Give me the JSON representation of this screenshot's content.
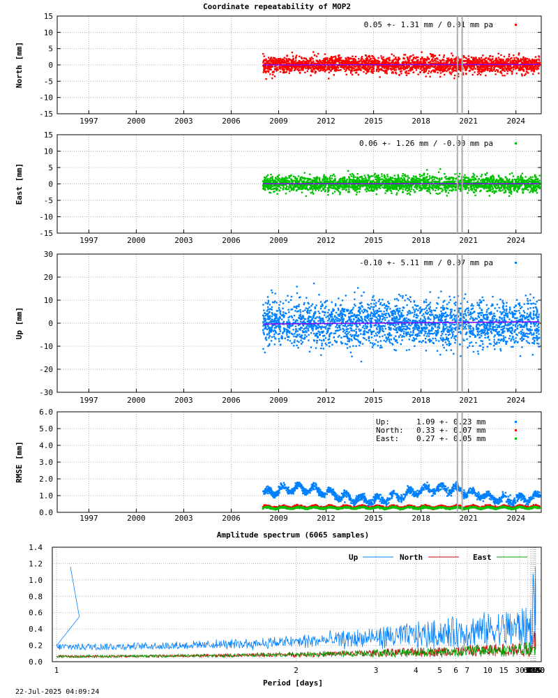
{
  "footer_timestamp": "22-Jul-2025 04:09:24",
  "chart_data": [
    {
      "type": "scatter",
      "title": "Coordinate repeatability of MOP2",
      "ylabel": "North [mm]",
      "xlim": [
        1995.0,
        2025.6
      ],
      "ylim": [
        -15,
        15
      ],
      "yticks": [
        15,
        10,
        5,
        0,
        -5,
        -10,
        -15
      ],
      "xticks": [
        1997,
        2000,
        2003,
        2006,
        2009,
        2012,
        2015,
        2018,
        2021,
        2024
      ],
      "grid": true,
      "series_color": "#ff0000",
      "trend_color": "#8000ff",
      "legend_text": "0.05 +- 1.31 mm /  0.01 mm pa",
      "data_start": 2008.0,
      "data_end": 2025.5,
      "spread_mm": 1.31,
      "mean_mm": 0.05,
      "rate_mm_pa": 0.01,
      "vertical_markers": [
        2020.3,
        2020.6
      ]
    },
    {
      "type": "scatter",
      "ylabel": "East [mm]",
      "xlim": [
        1995.0,
        2025.6
      ],
      "ylim": [
        -15,
        15
      ],
      "yticks": [
        15,
        10,
        5,
        0,
        -5,
        -10,
        -15
      ],
      "xticks": [
        1997,
        2000,
        2003,
        2006,
        2009,
        2012,
        2015,
        2018,
        2021,
        2024
      ],
      "grid": true,
      "series_color": "#00c000",
      "trend_color": "#8000ff",
      "legend_text": "0.06 +- 1.26 mm / -0.00 mm pa",
      "data_start": 2008.0,
      "data_end": 2025.5,
      "spread_mm": 1.26,
      "mean_mm": 0.06,
      "rate_mm_pa": -0.0,
      "vertical_markers": [
        2020.3,
        2020.6
      ]
    },
    {
      "type": "scatter",
      "ylabel": "Up [mm]",
      "xlim": [
        1995.0,
        2025.6
      ],
      "ylim": [
        -30,
        30
      ],
      "yticks": [
        30,
        20,
        10,
        0,
        -10,
        -20,
        -30
      ],
      "xticks": [
        1997,
        2000,
        2003,
        2006,
        2009,
        2012,
        2015,
        2018,
        2021,
        2024
      ],
      "grid": true,
      "series_color": "#0080ff",
      "trend_color": "#8000ff",
      "legend_text": "-0.10 +- 5.11 mm /  0.07 mm pa",
      "data_start": 2008.0,
      "data_end": 2025.5,
      "spread_mm": 5.11,
      "mean_mm": -0.1,
      "rate_mm_pa": 0.07,
      "vertical_markers": [
        2020.3,
        2020.6
      ]
    },
    {
      "type": "scatter",
      "ylabel": "RMSE [mm]",
      "xlim": [
        1995.0,
        2025.6
      ],
      "ylim": [
        0,
        6
      ],
      "yticks": [
        "6.0",
        "5.0",
        "4.0",
        "3.0",
        "2.0",
        "1.0",
        "0.0"
      ],
      "xticks": [
        1997,
        2000,
        2003,
        2006,
        2009,
        2012,
        2015,
        2018,
        2021,
        2024
      ],
      "grid": true,
      "vertical_markers": [
        2020.3,
        2020.6
      ],
      "legend_position": "top-right",
      "series": [
        {
          "name": "Up:",
          "stats": "1.09 +- 0.23 mm",
          "mean": 1.09,
          "sd": 0.23,
          "color": "#0080ff"
        },
        {
          "name": "North:",
          "stats": "0.33 +- 0.07 mm",
          "mean": 0.33,
          "sd": 0.07,
          "color": "#ff0000"
        },
        {
          "name": "East:",
          "stats": "0.27 +- 0.05 mm",
          "mean": 0.27,
          "sd": 0.05,
          "color": "#00c000"
        }
      ]
    },
    {
      "type": "line",
      "title": "Amplitude spectrum (6065 samples)",
      "xlabel": "Period [days]",
      "xscale": "reciprocal",
      "xticks": [
        "1",
        "2",
        "3",
        "4",
        "5",
        "6",
        "7",
        "10",
        "15",
        "30",
        "61",
        "91",
        "122",
        "183",
        "365",
        "730",
        "2190",
        "4380",
        "8760"
      ],
      "ylim": [
        0,
        1.4
      ],
      "yticks": [
        "1.4",
        "1.2",
        "1.0",
        "0.8",
        "0.6",
        "0.4",
        "0.2",
        "0.0"
      ],
      "grid": true,
      "legend_position": "top-right",
      "series": [
        {
          "name": "Up",
          "color": "#0080ff",
          "low_period_peaks": [
            [
              1.03,
              1.16
            ],
            [
              1.05,
              0.55
            ]
          ],
          "long_period_points": [
            [
              183,
              1.08
            ],
            [
              365,
              0.78
            ],
            [
              730,
              0.25
            ],
            [
              900,
              0.6
            ],
            [
              1095,
              1.02
            ],
            [
              1460,
              0.65
            ],
            [
              2190,
              1.16
            ],
            [
              3000,
              0.45
            ],
            [
              6570,
              0.95
            ]
          ]
        },
        {
          "name": "North",
          "color": "#c00000",
          "long_period_points": [
            [
              365,
              0.37
            ],
            [
              548,
              0.15
            ],
            [
              730,
              0.12
            ],
            [
              1095,
              0.18
            ],
            [
              2190,
              0.35
            ],
            [
              3000,
              0.15
            ],
            [
              6570,
              0.26
            ]
          ]
        },
        {
          "name": "East",
          "color": "#00a000",
          "long_period_points": [
            [
              365,
              0.18
            ],
            [
              548,
              0.08
            ],
            [
              730,
              0.1
            ],
            [
              1095,
              0.22
            ],
            [
              2190,
              0.34
            ],
            [
              3000,
              0.16
            ],
            [
              6570,
              0.24
            ]
          ]
        }
      ]
    }
  ]
}
